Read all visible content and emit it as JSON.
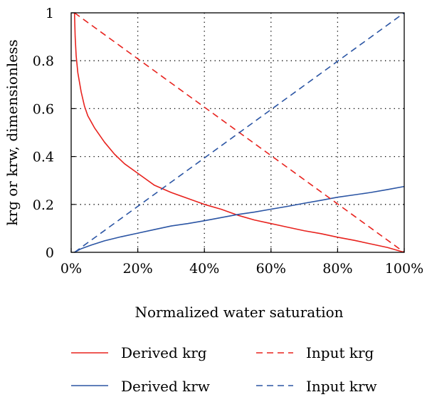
{
  "chart_data": {
    "type": "line",
    "title": "",
    "xlabel": "Normalized water saturation",
    "ylabel": "krg or krw, dimensionless",
    "xlim": [
      0,
      100
    ],
    "ylim": [
      0,
      1
    ],
    "x_ticks": [
      "0%",
      "20%",
      "40%",
      "60%",
      "80%",
      "100%"
    ],
    "y_ticks": [
      "0",
      "0.2",
      "0.4",
      "0.6",
      "0.8",
      "1"
    ],
    "grid": "dotted",
    "legend_position": "bottom",
    "series": [
      {
        "name": "Derived krg",
        "color": "#e8231e",
        "style": "solid",
        "x": [
          1,
          1.2,
          1.5,
          2,
          3,
          4,
          5,
          7,
          10,
          13,
          16,
          20,
          25,
          30,
          35,
          40,
          45,
          50,
          55,
          60,
          65,
          70,
          75,
          80,
          85,
          90,
          95,
          100
        ],
        "y": [
          1.0,
          0.9,
          0.82,
          0.75,
          0.67,
          0.61,
          0.57,
          0.52,
          0.46,
          0.41,
          0.37,
          0.33,
          0.28,
          0.25,
          0.225,
          0.2,
          0.18,
          0.155,
          0.135,
          0.12,
          0.105,
          0.09,
          0.078,
          0.063,
          0.05,
          0.035,
          0.02,
          0.0
        ]
      },
      {
        "name": "Derived krw",
        "color": "#2b55a4",
        "style": "solid",
        "x": [
          1,
          3,
          6,
          10,
          15,
          20,
          25,
          30,
          35,
          40,
          45,
          50,
          55,
          60,
          65,
          70,
          75,
          80,
          85,
          90,
          95,
          100
        ],
        "y": [
          0.0,
          0.015,
          0.03,
          0.048,
          0.065,
          0.08,
          0.095,
          0.11,
          0.12,
          0.132,
          0.145,
          0.158,
          0.168,
          0.18,
          0.192,
          0.205,
          0.217,
          0.23,
          0.24,
          0.25,
          0.262,
          0.275
        ]
      },
      {
        "name": "Input krg",
        "color": "#e8231e",
        "style": "dashed",
        "x": [
          1,
          100
        ],
        "y": [
          1.0,
          0.0
        ]
      },
      {
        "name": "Input krw",
        "color": "#2b55a4",
        "style": "dashed",
        "x": [
          1,
          100
        ],
        "y": [
          0.0,
          1.0
        ]
      }
    ]
  }
}
